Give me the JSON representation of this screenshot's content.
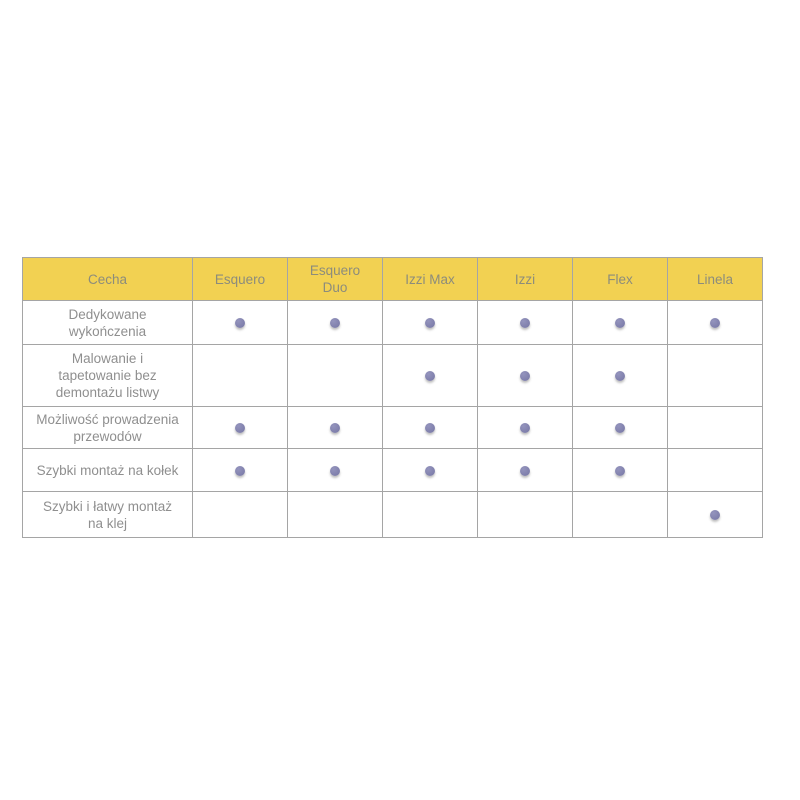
{
  "table": {
    "columns": [
      "Cecha",
      "Esquero",
      "Esquero\nDuo",
      "Izzi Max",
      "Izzi",
      "Flex",
      "Linela"
    ],
    "rows": [
      {
        "feature": "Dedykowane\nwykończenia",
        "values": [
          1,
          1,
          1,
          1,
          1,
          1
        ]
      },
      {
        "feature": "Malowanie i\ntapetowanie bez\ndemontażu listwy",
        "values": [
          0,
          0,
          1,
          1,
          1,
          0
        ]
      },
      {
        "feature": "Możliwość prowadzenia\nprzewodów",
        "values": [
          1,
          1,
          1,
          1,
          1,
          0
        ]
      },
      {
        "feature": "Szybki montaż na kołek",
        "values": [
          1,
          1,
          1,
          1,
          1,
          0
        ]
      },
      {
        "feature": "Szybki i łatwy montaż\nna klej",
        "values": [
          0,
          0,
          0,
          0,
          0,
          1
        ]
      }
    ]
  },
  "chart_data": {
    "type": "table",
    "title": "",
    "columns": [
      "Cecha",
      "Esquero",
      "Esquero Duo",
      "Izzi Max",
      "Izzi",
      "Flex",
      "Linela"
    ],
    "rows": [
      [
        "Dedykowane wykończenia",
        true,
        true,
        true,
        true,
        true,
        true
      ],
      [
        "Malowanie i tapetowanie bez demontażu listwy",
        false,
        false,
        true,
        true,
        true,
        false
      ],
      [
        "Możliwość prowadzenia przewodów",
        true,
        true,
        true,
        true,
        true,
        false
      ],
      [
        "Szybki montaż na kołek",
        true,
        true,
        true,
        true,
        true,
        false
      ],
      [
        "Szybki i łatwy montaż na klej",
        false,
        false,
        false,
        false,
        false,
        true
      ]
    ],
    "marker": "filled-dot"
  },
  "colors": {
    "header_bg": "#F2D152",
    "header_text": "#8C8C7C",
    "body_text": "#8F8F8F",
    "border": "#A5A5A5",
    "dot": "#7C7CAA",
    "background": "#FFFFFF"
  }
}
